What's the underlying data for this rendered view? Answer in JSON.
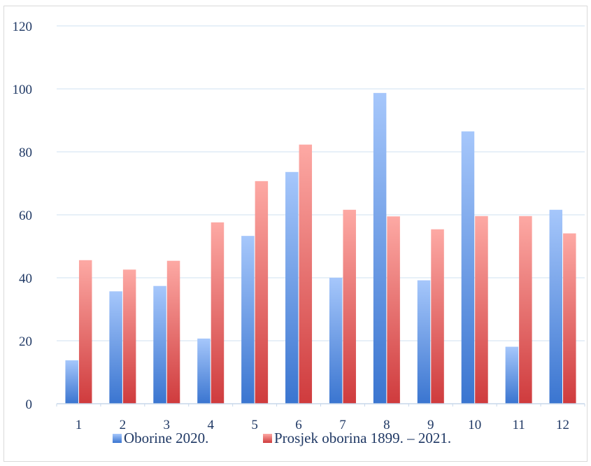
{
  "chart_data": {
    "type": "bar",
    "title": "",
    "xlabel": "",
    "ylabel": "",
    "categories": [
      "1",
      "2",
      "3",
      "4",
      "5",
      "6",
      "7",
      "8",
      "9",
      "10",
      "11",
      "12"
    ],
    "series": [
      {
        "name": "Oborine 2020.",
        "values": [
          13.8,
          35.7,
          37.4,
          20.7,
          53.3,
          73.6,
          40.0,
          98.7,
          39.2,
          86.5,
          18.1,
          61.6
        ],
        "color_top": "#a6c7fb",
        "color_bottom": "#3a75d0"
      },
      {
        "name": "Prosjek oborina 1899. – 2021.",
        "values": [
          45.6,
          42.6,
          45.4,
          57.6,
          70.7,
          82.3,
          61.6,
          59.5,
          55.4,
          59.6,
          59.6,
          54.1
        ],
        "color_top": "#fda9a4",
        "color_bottom": "#cf3b3d"
      }
    ],
    "ylim": [
      0,
      120
    ],
    "yticks": [
      "0",
      "20",
      "40",
      "60",
      "80",
      "100",
      "120"
    ],
    "grid": true,
    "legend_position": "bottom"
  }
}
